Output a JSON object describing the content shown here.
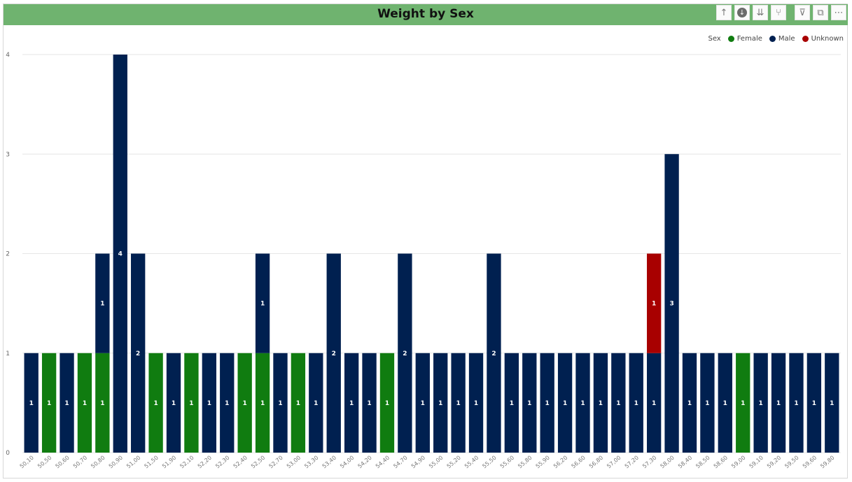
{
  "title": "Weight by Sex",
  "toolbar": [
    {
      "name": "drill-up-icon",
      "glyph": "↑"
    },
    {
      "name": "drill-down-mode-icon",
      "glyph": "↓"
    },
    {
      "name": "go-to-next-level-icon",
      "glyph": "⇊"
    },
    {
      "name": "expand-hierarchy-icon",
      "glyph": "⑂"
    },
    {
      "name": "filter-icon",
      "glyph": "⊽"
    },
    {
      "name": "focus-mode-icon",
      "glyph": "⧉"
    },
    {
      "name": "more-options-icon",
      "glyph": "⋯"
    }
  ],
  "legend": {
    "title": "Sex",
    "items": [
      {
        "label": "Female",
        "color": "#107c10"
      },
      {
        "label": "Male",
        "color": "#002050"
      },
      {
        "label": "Unknown",
        "color": "#a80000"
      }
    ]
  },
  "chart_data": {
    "type": "bar",
    "stacked": true,
    "title": "Weight by Sex",
    "ylim": [
      0,
      4
    ],
    "yticks": [
      0,
      1,
      2,
      3,
      4
    ],
    "grid": true,
    "legend_position": "top-right",
    "categories": [
      "50,10",
      "50,50",
      "50,60",
      "50,70",
      "50,80",
      "50,90",
      "51,00",
      "51,50",
      "51,90",
      "52,10",
      "52,20",
      "52,30",
      "52,40",
      "52,50",
      "52,70",
      "53,00",
      "53,30",
      "53,40",
      "54,00",
      "54,20",
      "54,40",
      "54,70",
      "54,90",
      "55,00",
      "55,20",
      "55,40",
      "55,50",
      "55,60",
      "55,80",
      "55,90",
      "56,20",
      "56,60",
      "56,80",
      "57,00",
      "57,20",
      "57,30",
      "58,00",
      "58,40",
      "58,50",
      "58,60",
      "59,00",
      "59,10",
      "59,20",
      "59,50",
      "59,60",
      "59,80"
    ],
    "series": [
      {
        "name": "Female",
        "color": "#107c10",
        "values": [
          0,
          1,
          0,
          1,
          1,
          0,
          0,
          1,
          0,
          1,
          0,
          0,
          1,
          1,
          0,
          1,
          0,
          0,
          0,
          0,
          1,
          0,
          0,
          0,
          0,
          0,
          0,
          0,
          0,
          0,
          0,
          0,
          0,
          0,
          0,
          0,
          0,
          0,
          0,
          0,
          1,
          0,
          0,
          0,
          0,
          0
        ]
      },
      {
        "name": "Male",
        "color": "#002050",
        "values": [
          1,
          0,
          1,
          0,
          1,
          4,
          2,
          0,
          1,
          0,
          1,
          1,
          0,
          1,
          1,
          0,
          1,
          2,
          1,
          1,
          0,
          2,
          1,
          1,
          1,
          1,
          2,
          1,
          1,
          1,
          1,
          1,
          1,
          1,
          1,
          1,
          3,
          1,
          1,
          1,
          0,
          1,
          1,
          1,
          1,
          1
        ]
      },
      {
        "name": "Unknown",
        "color": "#a80000",
        "values": [
          0,
          0,
          0,
          0,
          0,
          0,
          0,
          0,
          0,
          0,
          0,
          0,
          0,
          0,
          0,
          0,
          0,
          0,
          0,
          0,
          0,
          0,
          0,
          0,
          0,
          0,
          0,
          0,
          0,
          0,
          0,
          0,
          0,
          0,
          0,
          1,
          0,
          0,
          0,
          0,
          0,
          0,
          0,
          0,
          0,
          0
        ]
      }
    ]
  }
}
